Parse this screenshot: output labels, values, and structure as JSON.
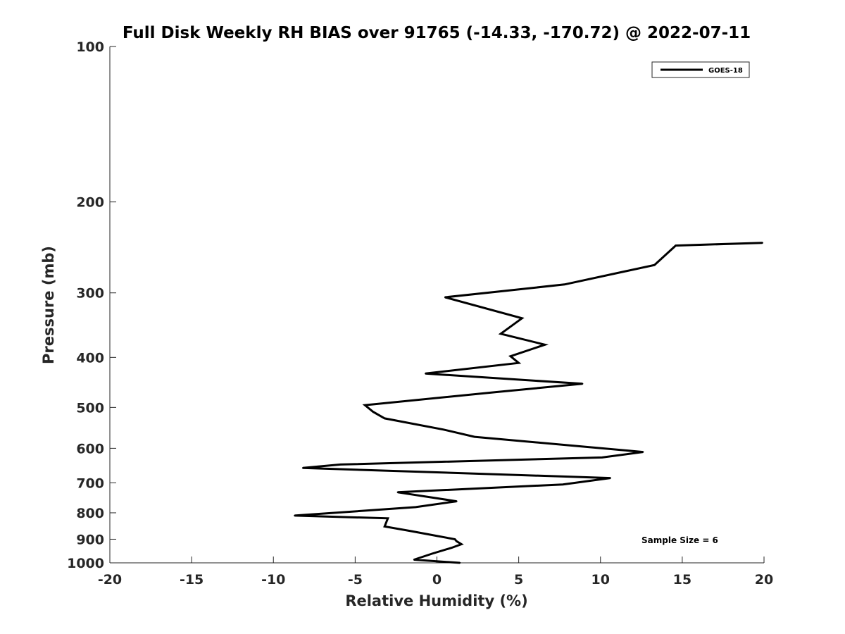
{
  "chart_data": {
    "type": "line",
    "title": "Full Disk Weekly RH BIAS over 91765 (-14.33, -170.72) @ 2022-07-11",
    "xlabel": "Relative Humidity (%)",
    "ylabel": "Pressure (mb)",
    "xlim": [
      -20,
      20
    ],
    "ylim": [
      100,
      1000
    ],
    "y_scale": "log",
    "y_reversed": true,
    "grid": false,
    "x_ticks": [
      "-20",
      "-15",
      "-10",
      "-5",
      "0",
      "5",
      "10",
      "15",
      "20"
    ],
    "y_ticks": [
      "100",
      "200",
      "300",
      "400",
      "500",
      "600",
      "700",
      "800",
      "900",
      "1000"
    ],
    "legend": {
      "position": "top-right",
      "entries": [
        "GOES-18"
      ]
    },
    "annotation": "Sample Size = 6",
    "line_color": "#000000",
    "series": [
      {
        "name": "GOES-18",
        "x": [
          1.4,
          -1.4,
          -0.3,
          0.9,
          1.5,
          1.2,
          1.1,
          -1.6,
          -3.2,
          -3.1,
          -3.0,
          -8.7,
          -1.3,
          1.2,
          -2.4,
          7.7,
          10.6,
          -8.2,
          -5.9,
          10.1,
          12.6,
          2.3,
          0.4,
          -3.2,
          -3.9,
          -4.4,
          3.6,
          8.9,
          -0.7,
          5.0,
          4.5,
          6.6,
          3.9,
          5.2,
          0.5,
          7.8,
          13.3,
          14.6,
          19.9
        ],
        "y": [
          1000,
          986,
          960,
          935,
          920,
          908,
          900,
          868,
          850,
          835,
          820,
          810,
          780,
          760,
          730,
          705,
          685,
          655,
          645,
          625,
          610,
          570,
          552,
          525,
          510,
          495,
          467,
          450,
          430,
          410,
          398,
          378,
          360,
          336,
          306,
          289,
          265,
          243,
          240
        ]
      }
    ]
  }
}
